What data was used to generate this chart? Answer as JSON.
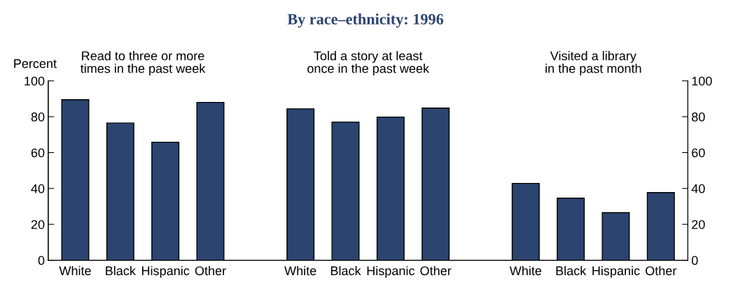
{
  "chart_data": {
    "type": "bar",
    "title": "By race–ethnicity: 1996",
    "ylabel": "Percent",
    "categories": [
      "White",
      "Black",
      "Hispanic",
      "Other",
      null,
      "White",
      "Black",
      "Hispanic",
      "Other",
      null,
      "White",
      "Black",
      "Hispanic",
      "Other"
    ],
    "values": [
      89.5,
      76.5,
      65.8,
      88,
      null,
      84.4,
      77,
      79.8,
      84.8,
      null,
      42.8,
      34.6,
      26.5,
      37.7
    ],
    "color": "#2b4470",
    "annotations": [
      "Read to three or more\ntimes in the past week",
      "Told a story at least\nonce in the past week",
      "Visited a library\nin the past month"
    ],
    "ylim": [
      0,
      100
    ],
    "yticks": [
      0,
      20,
      40,
      60,
      80,
      100
    ],
    "y2lim": [
      0,
      100
    ],
    "y2ticks": [
      0,
      20,
      40,
      60,
      80,
      100
    ],
    "grid": false,
    "legend": false
  }
}
